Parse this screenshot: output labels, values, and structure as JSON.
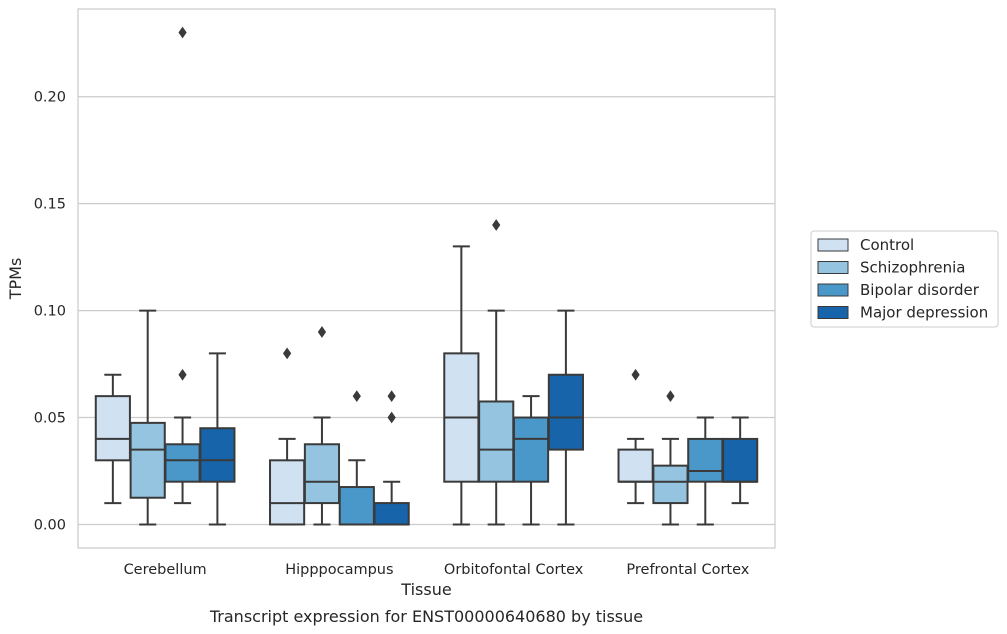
{
  "caption": "Transcript expression for ENST00000640680 by tissue",
  "chart_data": {
    "type": "boxplot",
    "title": "",
    "xlabel": "Tissue",
    "ylabel": "TPMs",
    "ylim": [
      -0.011,
      0.241
    ],
    "yticks": [
      0.0,
      0.05,
      0.1,
      0.15,
      0.2
    ],
    "ytick_labels": [
      "0.00",
      "0.05",
      "0.10",
      "0.15",
      "0.20"
    ],
    "grid": "horizontal",
    "legend_position": "right",
    "categories": [
      "Cerebellum",
      "Hipppocampus",
      "Orbitofontal Cortex",
      "Prefrontal Cortex"
    ],
    "series": [
      {
        "name": "Control",
        "color": "#d0e1f2",
        "boxes": [
          {
            "whislo": 0.01,
            "q1": 0.03,
            "med": 0.04,
            "q3": 0.06,
            "whishi": 0.07,
            "fliers": []
          },
          {
            "whislo": 0.0,
            "q1": 0.0,
            "med": 0.01,
            "q3": 0.03,
            "whishi": 0.04,
            "fliers": [
              0.08
            ]
          },
          {
            "whislo": 0.0,
            "q1": 0.02,
            "med": 0.05,
            "q3": 0.08,
            "whishi": 0.13,
            "fliers": []
          },
          {
            "whislo": 0.01,
            "q1": 0.02,
            "med": 0.02,
            "q3": 0.035,
            "whishi": 0.04,
            "fliers": [
              0.07
            ]
          }
        ]
      },
      {
        "name": "Schizophrenia",
        "color": "#94c4df",
        "boxes": [
          {
            "whislo": 0.0,
            "q1": 0.0125,
            "med": 0.035,
            "q3": 0.0475,
            "whishi": 0.1,
            "fliers": []
          },
          {
            "whislo": 0.0,
            "q1": 0.01,
            "med": 0.02,
            "q3": 0.0375,
            "whishi": 0.05,
            "fliers": [
              0.09
            ]
          },
          {
            "whislo": 0.0,
            "q1": 0.02,
            "med": 0.035,
            "q3": 0.0575,
            "whishi": 0.1,
            "fliers": [
              0.14
            ]
          },
          {
            "whislo": 0.0,
            "q1": 0.01,
            "med": 0.02,
            "q3": 0.0275,
            "whishi": 0.04,
            "fliers": [
              0.06
            ]
          }
        ]
      },
      {
        "name": "Bipolar disorder",
        "color": "#4a98c9",
        "boxes": [
          {
            "whislo": 0.01,
            "q1": 0.02,
            "med": 0.03,
            "q3": 0.0375,
            "whishi": 0.05,
            "fliers": [
              0.07,
              0.23
            ]
          },
          {
            "whislo": 0.0,
            "q1": 0.0,
            "med": 0.0,
            "q3": 0.0175,
            "whishi": 0.03,
            "fliers": [
              0.06
            ]
          },
          {
            "whislo": 0.0,
            "q1": 0.02,
            "med": 0.04,
            "q3": 0.05,
            "whishi": 0.06,
            "fliers": []
          },
          {
            "whislo": 0.0,
            "q1": 0.02,
            "med": 0.025,
            "q3": 0.04,
            "whishi": 0.05,
            "fliers": []
          }
        ]
      },
      {
        "name": "Major depression",
        "color": "#1764ab",
        "boxes": [
          {
            "whislo": 0.0,
            "q1": 0.02,
            "med": 0.03,
            "q3": 0.045,
            "whishi": 0.08,
            "fliers": []
          },
          {
            "whislo": 0.0,
            "q1": 0.0,
            "med": 0.0,
            "q3": 0.01,
            "whishi": 0.02,
            "fliers": [
              0.05,
              0.06
            ]
          },
          {
            "whislo": 0.0,
            "q1": 0.035,
            "med": 0.05,
            "q3": 0.07,
            "whishi": 0.1,
            "fliers": []
          },
          {
            "whislo": 0.01,
            "q1": 0.02,
            "med": 0.02,
            "q3": 0.04,
            "whishi": 0.05,
            "fliers": []
          }
        ]
      }
    ]
  }
}
